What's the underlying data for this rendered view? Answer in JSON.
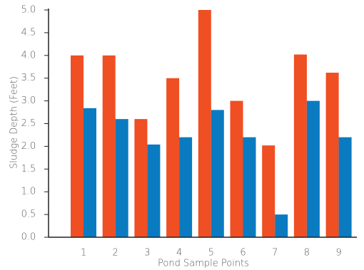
{
  "chart_data": {
    "type": "bar",
    "y_label": "Sludge Depth (Feet)",
    "x_label": "Pond Sample Points",
    "categories": [
      "1",
      "2",
      "3",
      "4",
      "5",
      "6",
      "7",
      "8",
      "9"
    ],
    "series": [
      {
        "color": "#f04e23",
        "values": [
          4.0,
          4.0,
          2.6,
          3.5,
          5.0,
          3.0,
          2.02,
          4.02,
          3.62
        ]
      },
      {
        "color": "#0a7bc1",
        "values": [
          2.84,
          2.6,
          2.04,
          2.2,
          2.8,
          2.2,
          0.5,
          3.0,
          2.2
        ]
      }
    ],
    "ylim": [
      0,
      5
    ],
    "yticks": [
      {
        "value": 0,
        "label": "0.0"
      },
      {
        "value": 0.5,
        "label": "0.5"
      },
      {
        "value": 1,
        "label": "1.0"
      },
      {
        "value": 1.5,
        "label": "1.5"
      },
      {
        "value": 2,
        "label": "2.0"
      },
      {
        "value": 2.5,
        "label": "2.5"
      },
      {
        "value": 3,
        "label": "3.0"
      },
      {
        "value": 3.5,
        "label": "3.5"
      },
      {
        "value": 4,
        "label": "4.0"
      },
      {
        "value": 4.5,
        "label": "4.5"
      },
      {
        "value": 5,
        "label": "5.0"
      }
    ],
    "grid": false
  }
}
